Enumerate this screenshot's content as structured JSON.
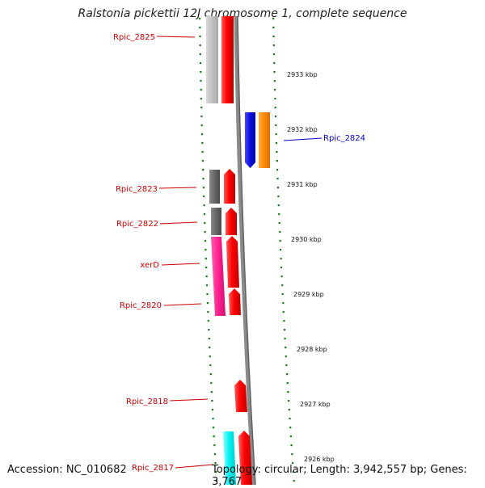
{
  "title": "Ralstonia pickettii 12J chromosome 1, complete sequence",
  "footer": {
    "accession": "Accession: NC_010682",
    "topology": "Topology: circular; Length: 3,942,557 bp; Genes: 3,767"
  },
  "colors": {
    "backbone": "#8a8a8a",
    "tick": "#1a7a1a",
    "label_red": "#cc0000",
    "label_blue": "#0000cc"
  },
  "scale_labels": [
    "2933 kbp",
    "2932 kbp",
    "2931 kbp",
    "2930 kbp",
    "2929 kbp",
    "2928 kbp",
    "2927 kbp",
    "2926 kbp"
  ],
  "genes": [
    {
      "label": "Rpic_2825",
      "label_color": "#cc0000",
      "color": "#ff0000",
      "cog_color": "#c0c0c0"
    },
    {
      "label": "Rpic_2824",
      "label_color": "#0000cc",
      "color": "#1010e0",
      "cog_color": "#ff8800"
    },
    {
      "label": "Rpic_2823",
      "label_color": "#cc0000",
      "color": "#ff0000",
      "cog_color": "#666666"
    },
    {
      "label": "Rpic_2822",
      "label_color": "#cc0000",
      "color": "#ff0000",
      "cog_color": "#666666"
    },
    {
      "label": "xerD",
      "label_color": "#cc0000",
      "color": "#ff0000",
      "cog_color": "#ff2090"
    },
    {
      "label": "Rpic_2820",
      "label_color": "#cc0000",
      "color": "#ff0000",
      "cog_color": "#ff2090"
    },
    {
      "label": "Rpic_2818",
      "label_color": "#cc0000",
      "color": "#ff0000",
      "cog_color": ""
    },
    {
      "label": "Rpic_2817",
      "label_color": "#cc0000",
      "color": "#ff0000",
      "cog_color": "#00f0f0"
    }
  ]
}
